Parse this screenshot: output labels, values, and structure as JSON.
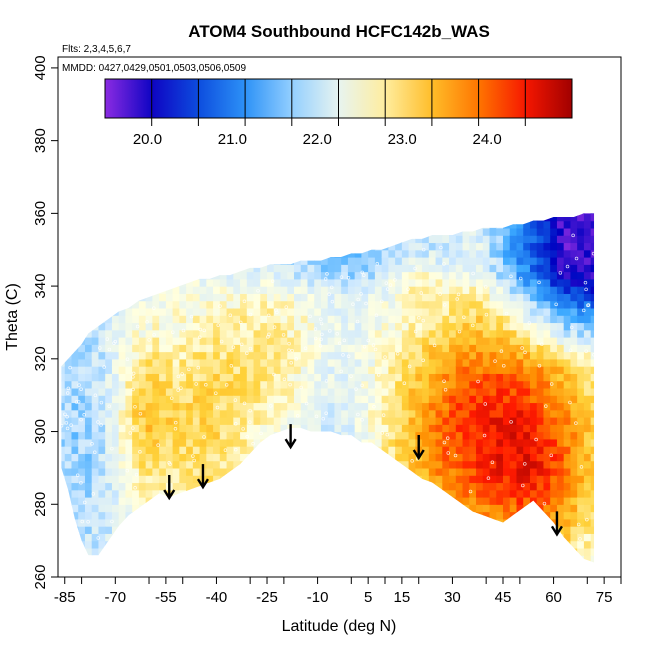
{
  "chart_data": {
    "type": "heatmap",
    "title": "ATOM4 Southbound HCFC142b_WAS",
    "annotations": {
      "flights": "Flts: 2,3,4,5,6,7",
      "dates": "MMDD: 0427,0429,0501,0503,0506,0509"
    },
    "xlabel": "Latitude (deg N)",
    "ylabel": "Theta (C)",
    "xlim": [
      -87,
      80
    ],
    "ylim": [
      260,
      403
    ],
    "x_ticks": [
      -85,
      -70,
      -55,
      -40,
      -25,
      -10,
      5,
      15,
      30,
      45,
      60,
      75
    ],
    "x_tick_labels": [
      "-85",
      "-70",
      "-55",
      "-40",
      "-25",
      "-10",
      "5",
      "15",
      "30",
      "45",
      "60",
      "75"
    ],
    "y_ticks": [
      260,
      280,
      300,
      320,
      340,
      360,
      380,
      400
    ],
    "y_tick_labels": [
      "260",
      "280",
      "300",
      "320",
      "340",
      "360",
      "380",
      "400"
    ],
    "colorbar": {
      "min": 19.5,
      "max": 25.0,
      "ticks": [
        20.0,
        21.0,
        22.0,
        23.0,
        24.0
      ],
      "tick_labels": [
        "20.0",
        "21.0",
        "22.0",
        "23.0",
        "24.0"
      ],
      "colors": [
        "#8b2be2",
        "#0000c0",
        "#1060e6",
        "#3aa8ff",
        "#cfe9ff",
        "#ffffe0",
        "#ffd23a",
        "#ff8c00",
        "#ff1a00",
        "#a00000"
      ]
    },
    "field_description": "Curtain of HCFC142b mixing ratio vs latitude and potential temperature; values near 21.5-22.5 across the tropics and southern hemisphere, 23.5-24.5 in northern mid-latitudes below 320 K, and 20.0-21.0 in the northern lower stratosphere above 330 K.",
    "boundary": {
      "lat": [
        -86,
        -84,
        -82,
        -80,
        -78,
        -75,
        -72,
        -69,
        -66,
        -63,
        -60,
        -57,
        -54,
        -51,
        -48,
        -45,
        -42,
        -39,
        -36,
        -33,
        -30,
        -27,
        -24,
        -21,
        -18,
        -15,
        -12,
        -9,
        -6,
        -3,
        0,
        3,
        6,
        9,
        12,
        15,
        18,
        21,
        24,
        27,
        30,
        33,
        36,
        39,
        42,
        45,
        48,
        51,
        54,
        57,
        60,
        63,
        66,
        69,
        72
      ],
      "top": [
        318,
        320,
        322,
        324,
        327,
        329,
        331,
        333,
        334,
        336,
        337,
        338,
        339,
        340,
        341,
        342,
        342,
        343,
        343,
        344,
        345,
        345,
        346,
        346,
        346,
        347,
        347,
        347,
        348,
        348,
        349,
        349,
        350,
        350,
        351,
        352,
        353,
        353,
        354,
        354,
        354,
        355,
        355,
        356,
        356,
        356,
        357,
        357,
        358,
        358,
        359,
        359,
        359,
        360,
        360
      ],
      "bottom": [
        290,
        284,
        276,
        270,
        266,
        266,
        270,
        274,
        277,
        279,
        281,
        283,
        282,
        283,
        284,
        285,
        286,
        287,
        289,
        291,
        294,
        297,
        299,
        300,
        301,
        301,
        300,
        300,
        300,
        299,
        299,
        297,
        297,
        295,
        293,
        291,
        289,
        287,
        286,
        284,
        282,
        280,
        278,
        277,
        276,
        275,
        277,
        279,
        281,
        278,
        275,
        271,
        268,
        265,
        264
      ]
    },
    "arrows": [
      {
        "lat": -54,
        "theta": 282
      },
      {
        "lat": -44,
        "theta": 285
      },
      {
        "lat": -18,
        "theta": 296
      },
      {
        "lat": 20,
        "theta": 293
      },
      {
        "lat": 61,
        "theta": 272
      }
    ],
    "grid": false,
    "legend": "top"
  }
}
